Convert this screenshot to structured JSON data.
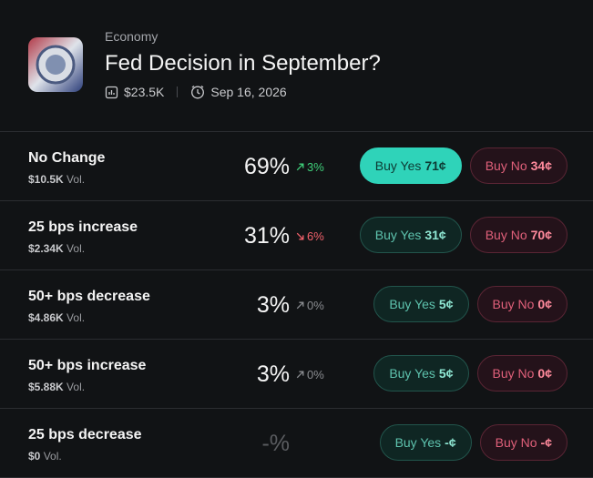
{
  "header": {
    "category": "Economy",
    "title": "Fed Decision in September?",
    "volume": "$23.5K",
    "date": "Sep 16, 2026"
  },
  "vol_label": "Vol.",
  "buy_yes_label": "Buy Yes",
  "buy_no_label": "Buy No",
  "rows": [
    {
      "name": "No Change",
      "volume": "$10.5K",
      "chance": "69%",
      "change": "3%",
      "direction": "up",
      "yes_price": "71¢",
      "no_price": "34¢",
      "highlight": true
    },
    {
      "name": "25 bps increase",
      "volume": "$2.34K",
      "chance": "31%",
      "change": "6%",
      "direction": "down",
      "yes_price": "31¢",
      "no_price": "70¢",
      "highlight": false
    },
    {
      "name": "50+ bps decrease",
      "volume": "$4.86K",
      "chance": "3%",
      "change": "0%",
      "direction": "flat",
      "yes_price": "5¢",
      "no_price": "0¢",
      "highlight": false
    },
    {
      "name": "50+ bps increase",
      "volume": "$5.88K",
      "chance": "3%",
      "change": "0%",
      "direction": "flat",
      "yes_price": "5¢",
      "no_price": "0¢",
      "highlight": false
    },
    {
      "name": "25 bps decrease",
      "volume": "$0",
      "chance": "-%",
      "change": null,
      "direction": null,
      "yes_price": "-¢",
      "no_price": "-¢",
      "highlight": false
    }
  ]
}
